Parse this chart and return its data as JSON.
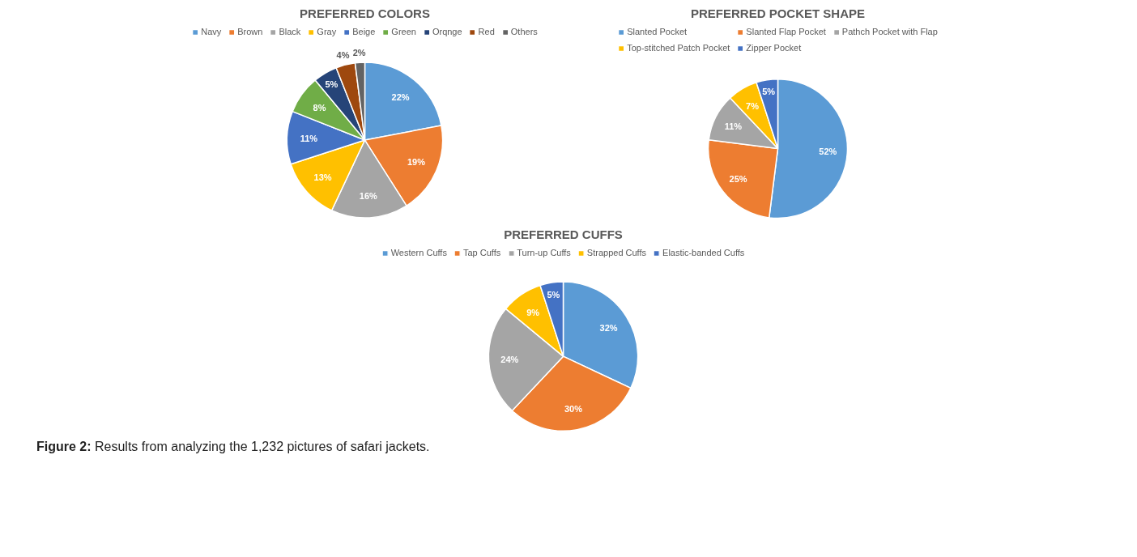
{
  "chart_data": [
    {
      "type": "pie",
      "title": "PREFERRED COLORS",
      "legend": "top",
      "categories": [
        "Navy",
        "Brown",
        "Black",
        "Gray",
        "Beige",
        "Green",
        "Orqnge",
        "Red",
        "Others"
      ],
      "values": [
        22,
        19,
        16,
        13,
        11,
        8,
        5,
        4,
        2
      ],
      "value_labels": [
        "22%",
        "19%",
        "16%",
        "13%",
        "11%",
        "8%",
        "5%",
        "4%",
        "2%"
      ],
      "colors": [
        "#5b9bd5",
        "#ed7d31",
        "#a5a5a5",
        "#ffc000",
        "#4472c4",
        "#70ad47",
        "#264478",
        "#9e480e",
        "#636363"
      ]
    },
    {
      "type": "pie",
      "title": "PREFERRED POCKET SHAPE",
      "legend": "top",
      "categories": [
        "Slanted Pocket",
        "Slanted Flap Pocket",
        "Pathch Pocket with Flap",
        "Top-stitched Patch Pocket",
        "Zipper Pocket"
      ],
      "values": [
        52,
        25,
        11,
        7,
        5
      ],
      "value_labels": [
        "52%",
        "25%",
        "11%",
        "7%",
        "5%"
      ],
      "colors": [
        "#5b9bd5",
        "#ed7d31",
        "#a5a5a5",
        "#ffc000",
        "#4472c4"
      ]
    },
    {
      "type": "pie",
      "title": "PREFERRED CUFFS",
      "legend": "top",
      "categories": [
        "Western Cuffs",
        "Tap Cuffs",
        "Turn-up Cuffs",
        "Strapped Cuffs",
        "Elastic-banded Cuffs"
      ],
      "values": [
        32,
        30,
        24,
        9,
        5
      ],
      "value_labels": [
        "32%",
        "30%",
        "24%",
        "9%",
        "5%"
      ],
      "colors": [
        "#5b9bd5",
        "#ed7d31",
        "#a5a5a5",
        "#ffc000",
        "#4472c4"
      ],
      "annotations": [
        "Figure 2: Results from analyzing the 1,232 pictures of safari jackets."
      ]
    }
  ]
}
